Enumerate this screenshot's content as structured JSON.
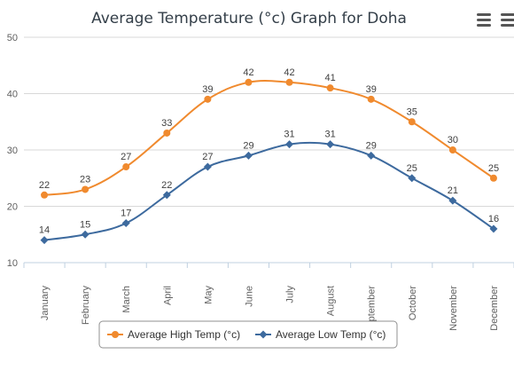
{
  "chart_data": {
    "type": "line",
    "title": "Average Temperature (°c) Graph for Doha",
    "categories": [
      "January",
      "February",
      "March",
      "April",
      "May",
      "June",
      "July",
      "August",
      "September",
      "October",
      "November",
      "December"
    ],
    "ylim": [
      10,
      50
    ],
    "yticks": [
      10,
      20,
      30,
      40,
      50
    ],
    "grid": true,
    "legend_position": "bottom-center",
    "series": [
      {
        "name": "Average High Temp (°c)",
        "color": "#f08a2e",
        "values": [
          22,
          23,
          27,
          33,
          39,
          42,
          42,
          41,
          39,
          35,
          30,
          25
        ]
      },
      {
        "name": "Average Low Temp (°c)",
        "color": "#3d6a9e",
        "values": [
          14,
          15,
          17,
          22,
          27,
          29,
          31,
          31,
          29,
          25,
          21,
          16
        ]
      }
    ]
  },
  "toolbar": {
    "menu_icons": [
      "menu-icon",
      "menu-icon"
    ]
  }
}
